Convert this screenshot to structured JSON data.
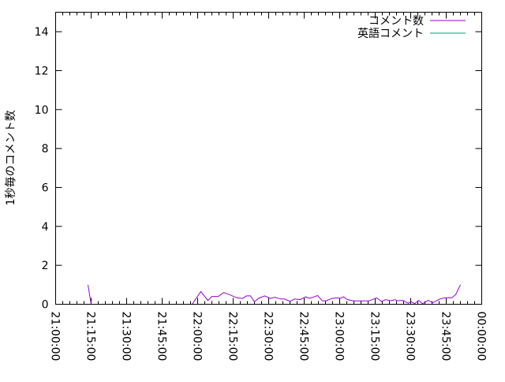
{
  "chart_data": {
    "type": "line",
    "title": "",
    "xlabel": "",
    "ylabel": "1秒毎のコメント数",
    "xlim": [
      "21:00:00",
      "00:00:00"
    ],
    "ylim": [
      0,
      15
    ],
    "yticks": [
      "0",
      "2",
      "4",
      "6",
      "8",
      "10",
      "12",
      "14"
    ],
    "xticks": [
      "21:00:00",
      "21:15:00",
      "21:30:00",
      "21:45:00",
      "22:00:00",
      "22:15:00",
      "22:30:00",
      "22:45:00",
      "23:00:00",
      "23:15:00",
      "23:30:00",
      "23:45:00",
      "00:00:00"
    ],
    "grid": false,
    "legend_position": "top-right",
    "x": [
      "21:13:40",
      "21:15:00",
      "21:30:00",
      "21:45:00",
      "21:57:40",
      "22:01:20",
      "22:04:20",
      "22:06:00",
      "22:08:40",
      "22:11:00",
      "22:13:20",
      "22:16:40",
      "22:19:00",
      "22:20:40",
      "22:22:20",
      "22:24:00",
      "22:25:40",
      "22:28:20",
      "22:30:40",
      "22:32:40",
      "22:35:00",
      "22:36:40",
      "22:39:00",
      "22:41:00",
      "22:43:20",
      "22:45:40",
      "22:47:20",
      "22:50:40",
      "22:52:40",
      "22:54:20",
      "22:56:40",
      "22:59:00",
      "23:00:00",
      "23:01:40",
      "23:03:20",
      "23:06:00",
      "23:12:20",
      "23:15:40",
      "23:17:40",
      "23:19:20",
      "23:21:40",
      "23:23:20",
      "23:24:20",
      "23:26:40",
      "23:29:00",
      "23:30:00",
      "23:31:40",
      "23:33:20",
      "23:35:00",
      "23:37:20",
      "23:39:20",
      "23:42:20",
      "23:44:20",
      "23:47:20",
      "23:49:00",
      "23:51:00"
    ],
    "series": [
      {
        "name": "コメント数",
        "color": "#9400d3",
        "values": [
          1.0,
          0,
          0,
          0,
          0,
          0.65,
          0.2,
          0.4,
          0.4,
          0.6,
          0.5,
          0.33,
          0.3,
          0.43,
          0.43,
          0.12,
          0.3,
          0.43,
          0.3,
          0.36,
          0.27,
          0.27,
          0.15,
          0.27,
          0.24,
          0.38,
          0.3,
          0.45,
          0.18,
          0.18,
          0.3,
          0.33,
          0.3,
          0.38,
          0.24,
          0.17,
          0.17,
          0.33,
          0.14,
          0.24,
          0.18,
          0.24,
          0.18,
          0.2,
          0.05,
          0.14,
          0.03,
          0.2,
          0.03,
          0.2,
          0.08,
          0.27,
          0.33,
          0.33,
          0.5,
          1.0
        ]
      },
      {
        "name": "英語コメント",
        "color": "#009e73",
        "values": [
          0,
          0,
          0,
          0,
          0,
          0,
          0,
          0,
          0,
          0,
          0,
          0,
          0,
          0,
          0,
          0,
          0,
          0,
          0,
          0,
          0,
          0,
          0,
          0,
          0,
          0,
          0,
          0,
          0,
          0,
          0,
          0,
          0,
          0,
          0,
          0,
          0,
          0,
          0,
          0,
          0,
          0,
          0,
          0,
          0,
          0,
          0,
          0,
          0,
          0,
          0,
          0,
          0,
          0,
          0,
          0
        ]
      }
    ]
  }
}
